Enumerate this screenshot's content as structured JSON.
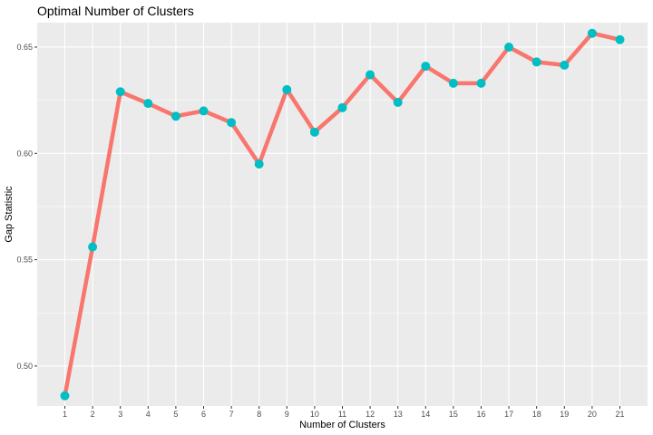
{
  "chart_data": {
    "type": "line",
    "title": "Optimal Number of Clusters",
    "xlabel": "Number of Clusters",
    "ylabel": "Gap Statistic",
    "categories": [
      "1",
      "2",
      "3",
      "4",
      "5",
      "6",
      "7",
      "8",
      "9",
      "10",
      "11",
      "12",
      "13",
      "14",
      "15",
      "16",
      "17",
      "18",
      "19",
      "20",
      "21"
    ],
    "values": [
      0.486,
      0.556,
      0.629,
      0.6235,
      0.6175,
      0.62,
      0.6145,
      0.595,
      0.63,
      0.61,
      0.6215,
      0.637,
      0.624,
      0.641,
      0.633,
      0.633,
      0.65,
      0.643,
      0.6415,
      0.6565,
      0.6535
    ],
    "y_ticks": [
      0.5,
      0.55,
      0.6,
      0.65
    ],
    "y_tick_labels": [
      "0.50",
      "0.55",
      "0.60",
      "0.65"
    ],
    "ylim": [
      0.4812,
      0.6615
    ],
    "grid": true,
    "line_color": "#F8766D",
    "point_color": "#00BFC4",
    "panel_color": "#EBEBEB",
    "grid_color": "#FFFFFF"
  }
}
